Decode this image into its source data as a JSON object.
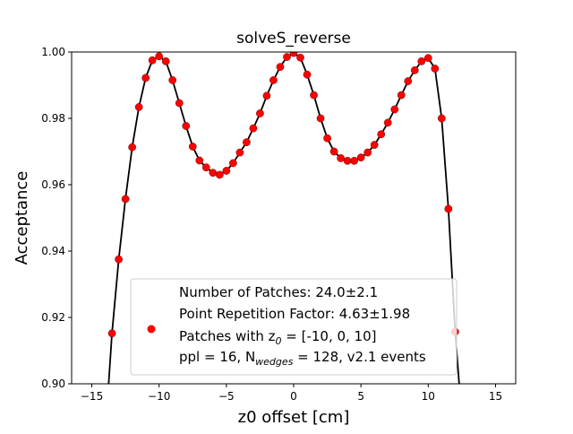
{
  "chart_data": {
    "type": "scatter",
    "title": "solveS_reverse",
    "xlabel": "z0 offset [cm]",
    "ylabel": "Acceptance",
    "xlim": [
      -16.5,
      16.5
    ],
    "ylim": [
      0.9,
      1.0
    ],
    "xticks": [
      -15,
      -10,
      -5,
      0,
      5,
      10,
      15
    ],
    "yticks": [
      0.9,
      0.92,
      0.94,
      0.96,
      0.98,
      1.0
    ],
    "xtick_labels": [
      "−15",
      "−10",
      "−5",
      "0",
      "5",
      "10",
      "15"
    ],
    "ytick_labels": [
      "0.90",
      "0.92",
      "0.94",
      "0.96",
      "0.98",
      "1.00"
    ],
    "grid": false,
    "legend": {
      "placement": "lower-center",
      "marker_color": "#ff0000",
      "lines": [
        {
          "pre": "Number of Patches: 24.0±2.1",
          "sub": "",
          "post": ""
        },
        {
          "pre": "Point Repetition Factor: 4.63±1.98",
          "sub": "",
          "post": ""
        },
        {
          "pre": "Patches with z",
          "sub": "0",
          "post": " = [-10, 0, 10]"
        },
        {
          "pre": "ppl = 16, N",
          "sub": "wedges",
          "post": " = 128, v2.1 events"
        }
      ]
    },
    "series": [
      {
        "style": "points",
        "color": "#ff0000",
        "edge_color": "#000000",
        "x": [
          -13.5,
          -13.0,
          -12.5,
          -12.0,
          -11.5,
          -11.0,
          -10.5,
          -10.0,
          -9.5,
          -9.0,
          -8.5,
          -8.0,
          -7.5,
          -7.0,
          -6.5,
          -6.0,
          -5.5,
          -5.0,
          -4.5,
          -4.0,
          -3.5,
          -3.0,
          -2.5,
          -2.0,
          -1.5,
          -1.0,
          -0.5,
          0.0,
          0.5,
          1.0,
          1.5,
          2.0,
          2.5,
          3.0,
          3.5,
          4.0,
          4.5,
          5.0,
          5.5,
          6.0,
          6.5,
          7.0,
          7.5,
          8.0,
          8.5,
          9.0,
          9.5,
          10.0,
          10.5,
          11.0,
          11.5,
          12.0
        ],
        "y": [
          0.9152,
          0.9375,
          0.9557,
          0.9713,
          0.9834,
          0.9922,
          0.9975,
          0.9987,
          0.9972,
          0.9915,
          0.9846,
          0.9777,
          0.9715,
          0.9673,
          0.9652,
          0.9636,
          0.963,
          0.9642,
          0.9665,
          0.9697,
          0.9728,
          0.977,
          0.9815,
          0.9868,
          0.9915,
          0.9955,
          0.9985,
          0.9997,
          0.9983,
          0.9932,
          0.987,
          0.98,
          0.974,
          0.97,
          0.968,
          0.9672,
          0.9672,
          0.9682,
          0.9697,
          0.972,
          0.9752,
          0.9787,
          0.9827,
          0.987,
          0.9912,
          0.9945,
          0.9972,
          0.9982,
          0.995,
          0.98,
          0.9527,
          0.9157
        ]
      },
      {
        "style": "line",
        "color": "#000000",
        "x": [
          -13.75,
          -13.5,
          -13.0,
          -12.5,
          -12.0,
          -11.5,
          -11.0,
          -10.5,
          -10.0,
          -9.5,
          -9.0,
          -8.5,
          -8.0,
          -7.5,
          -7.0,
          -6.5,
          -6.0,
          -5.5,
          -5.0,
          -4.5,
          -4.0,
          -3.5,
          -3.0,
          -2.5,
          -2.0,
          -1.5,
          -1.0,
          -0.5,
          0.0,
          0.5,
          1.0,
          1.5,
          2.0,
          2.5,
          3.0,
          3.5,
          4.0,
          4.5,
          5.0,
          5.5,
          6.0,
          6.5,
          7.0,
          7.5,
          8.0,
          8.5,
          9.0,
          9.5,
          10.0,
          10.5,
          11.0,
          11.5,
          12.0,
          12.3
        ],
        "y": [
          0.9,
          0.9152,
          0.9375,
          0.9557,
          0.9713,
          0.9834,
          0.9922,
          0.9975,
          0.9987,
          0.9972,
          0.9915,
          0.9846,
          0.9777,
          0.9715,
          0.9673,
          0.9652,
          0.9636,
          0.963,
          0.9642,
          0.9665,
          0.9697,
          0.9728,
          0.977,
          0.9815,
          0.9868,
          0.9915,
          0.9955,
          0.9985,
          0.9997,
          0.9983,
          0.9932,
          0.987,
          0.98,
          0.974,
          0.97,
          0.968,
          0.9672,
          0.9672,
          0.9682,
          0.9697,
          0.972,
          0.9752,
          0.9787,
          0.9827,
          0.987,
          0.9912,
          0.9945,
          0.9972,
          0.9982,
          0.995,
          0.98,
          0.9527,
          0.9157,
          0.9
        ]
      }
    ]
  }
}
